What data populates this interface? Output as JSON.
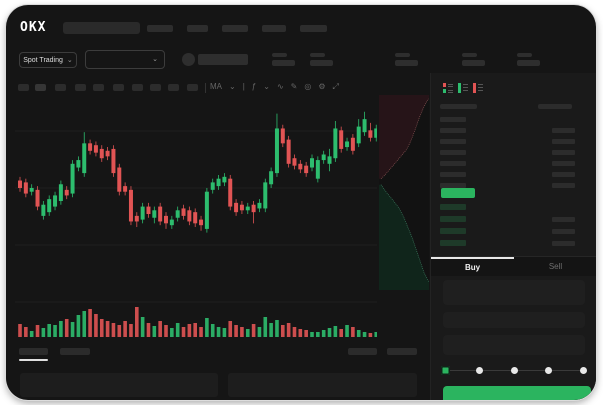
{
  "app": {
    "title": "OKX Spot Trading",
    "logo": "OKX"
  },
  "colors": {
    "up": "#2dbd6e",
    "down": "#e15454",
    "accent_green": "#2bb45f",
    "window_bg": "#151515",
    "panel_bg": "#1a1a1a",
    "depth_ask_fill": "#261418",
    "depth_ask_line": "#8a5555",
    "depth_bid_fill": "#10251b",
    "depth_bid_line": "#3c7a5f"
  },
  "header": {
    "nav_placeholder_widths": [
      26,
      21,
      26,
      24,
      27
    ],
    "search_placeholder": ""
  },
  "subheader": {
    "market_type": "Spot Trading",
    "pair_select_value": "",
    "stat_group_positions": [
      266,
      304,
      389,
      456,
      511
    ]
  },
  "toolbar": {
    "timeframe_buttons": 10,
    "icons": [
      {
        "name": "indicators-icon",
        "glyph": "MA"
      },
      {
        "name": "chevron-down-icon",
        "glyph": "⌄"
      },
      {
        "name": "separator",
        "glyph": "|"
      },
      {
        "name": "chart-type-icon",
        "glyph": "ƒ"
      },
      {
        "name": "chevron-down-icon",
        "glyph": "⌄"
      },
      {
        "name": "line-tool-icon",
        "glyph": "∿"
      },
      {
        "name": "draw-icon",
        "glyph": "✎"
      },
      {
        "name": "camera-icon",
        "glyph": "◎"
      },
      {
        "name": "settings-icon",
        "glyph": "⚙"
      },
      {
        "name": "fullscreen-icon",
        "glyph": "⤢"
      }
    ]
  },
  "chart_data": {
    "type": "candlestick",
    "title": "",
    "xlabel": "",
    "ylabel": "",
    "note": "axis tick labels are redacted in source; OHLC values normalized 0-100 of visible price range",
    "ylim": [
      0,
      100
    ],
    "grid": true,
    "colors": {
      "up": "#2dbd6e",
      "down": "#e15454"
    },
    "candles": [
      [
        61,
        63,
        55,
        57
      ],
      [
        60,
        62,
        52,
        54
      ],
      [
        55,
        59,
        53,
        57
      ],
      [
        56,
        58,
        45,
        47
      ],
      [
        42,
        50,
        40,
        48
      ],
      [
        44,
        53,
        42,
        51
      ],
      [
        47,
        55,
        45,
        53
      ],
      [
        50,
        61,
        48,
        59
      ],
      [
        56,
        58,
        51,
        53
      ],
      [
        54,
        72,
        52,
        70
      ],
      [
        68,
        74,
        66,
        72
      ],
      [
        65,
        87,
        63,
        81
      ],
      [
        81,
        83,
        75,
        77
      ],
      [
        80,
        82,
        74,
        76
      ],
      [
        78,
        80,
        71,
        73
      ],
      [
        77,
        79,
        72,
        74
      ],
      [
        78,
        80,
        63,
        65
      ],
      [
        68,
        70,
        53,
        55
      ],
      [
        58,
        60,
        53,
        55
      ],
      [
        56,
        58,
        37,
        39
      ],
      [
        42,
        44,
        36,
        39
      ],
      [
        40,
        49,
        38,
        47
      ],
      [
        47,
        49,
        41,
        43
      ],
      [
        41,
        47,
        38,
        45
      ],
      [
        47,
        49,
        37,
        39
      ],
      [
        42,
        44,
        35,
        38
      ],
      [
        37,
        42,
        35,
        40
      ],
      [
        41,
        47,
        39,
        45
      ],
      [
        46,
        48,
        40,
        42
      ],
      [
        45,
        47,
        37,
        39
      ],
      [
        44,
        46,
        36,
        38
      ],
      [
        40,
        42,
        34,
        37
      ],
      [
        35,
        57,
        33,
        55
      ],
      [
        56,
        62,
        54,
        60
      ],
      [
        58,
        64,
        56,
        62
      ],
      [
        60,
        65,
        58,
        63
      ],
      [
        62,
        64,
        45,
        47
      ],
      [
        49,
        51,
        42,
        44
      ],
      [
        48,
        50,
        43,
        45
      ],
      [
        45,
        49,
        43,
        47
      ],
      [
        48,
        50,
        38,
        44
      ],
      [
        46,
        51,
        44,
        49
      ],
      [
        46,
        62,
        44,
        60
      ],
      [
        59,
        68,
        57,
        66
      ],
      [
        65,
        97,
        63,
        89
      ],
      [
        89,
        91,
        79,
        81
      ],
      [
        83,
        85,
        68,
        70
      ],
      [
        73,
        75,
        67,
        69
      ],
      [
        70,
        72,
        65,
        67
      ],
      [
        69,
        71,
        63,
        65
      ],
      [
        68,
        75,
        66,
        73
      ],
      [
        62,
        74,
        60,
        72
      ],
      [
        72,
        77,
        70,
        75
      ],
      [
        70,
        78,
        66,
        74
      ],
      [
        73,
        93,
        71,
        89
      ],
      [
        88,
        90,
        76,
        78
      ],
      [
        79,
        84,
        77,
        82
      ],
      [
        84,
        86,
        75,
        77
      ],
      [
        81,
        94,
        79,
        90
      ],
      [
        87,
        98,
        85,
        94
      ],
      [
        88,
        92,
        82,
        84
      ],
      [
        84,
        91,
        82,
        89
      ]
    ],
    "volumes": [
      13,
      10,
      6,
      12,
      9,
      13,
      12,
      16,
      18,
      15,
      22,
      26,
      28,
      23,
      18,
      16,
      14,
      12,
      16,
      13,
      30,
      20,
      14,
      11,
      16,
      12,
      9,
      14,
      10,
      13,
      14,
      10,
      19,
      13,
      10,
      9,
      16,
      12,
      10,
      8,
      13,
      10,
      20,
      14,
      17,
      12,
      14,
      10,
      8,
      7,
      5,
      5,
      7,
      9,
      11,
      8,
      12,
      10,
      7,
      5,
      4,
      5
    ],
    "depth": {
      "ask_curve": [
        [
          0.04,
          0.43
        ],
        [
          0.12,
          0.41
        ],
        [
          0.22,
          0.38
        ],
        [
          0.32,
          0.35
        ],
        [
          0.45,
          0.31
        ],
        [
          0.55,
          0.28
        ],
        [
          0.63,
          0.24
        ],
        [
          0.72,
          0.18
        ],
        [
          0.8,
          0.12
        ],
        [
          0.88,
          0.07
        ],
        [
          0.96,
          0.03
        ],
        [
          1,
          0.02
        ]
      ],
      "bid_curve": [
        [
          0.04,
          0.46
        ],
        [
          0.15,
          0.5
        ],
        [
          0.28,
          0.54
        ],
        [
          0.4,
          0.58
        ],
        [
          0.5,
          0.63
        ],
        [
          0.58,
          0.68
        ],
        [
          0.66,
          0.73
        ],
        [
          0.74,
          0.79
        ],
        [
          0.82,
          0.85
        ],
        [
          0.9,
          0.91
        ],
        [
          1,
          0.96
        ]
      ]
    }
  },
  "order_book": {
    "view_modes": [
      "combined-book",
      "bids-only",
      "asks-only"
    ],
    "ask_rows": 7,
    "bid_rows": 4,
    "last_price_color": "#2bb45f"
  },
  "trade_panel": {
    "tabs": [
      "Buy",
      "Sell"
    ],
    "active_tab": "Buy",
    "slider": {
      "stops": 5,
      "selected_index": 0
    },
    "buy_button_label": ""
  },
  "bottom_bar": {
    "tab_placeholders": 2,
    "right_placeholders": 2,
    "active_tab_index": 0
  }
}
